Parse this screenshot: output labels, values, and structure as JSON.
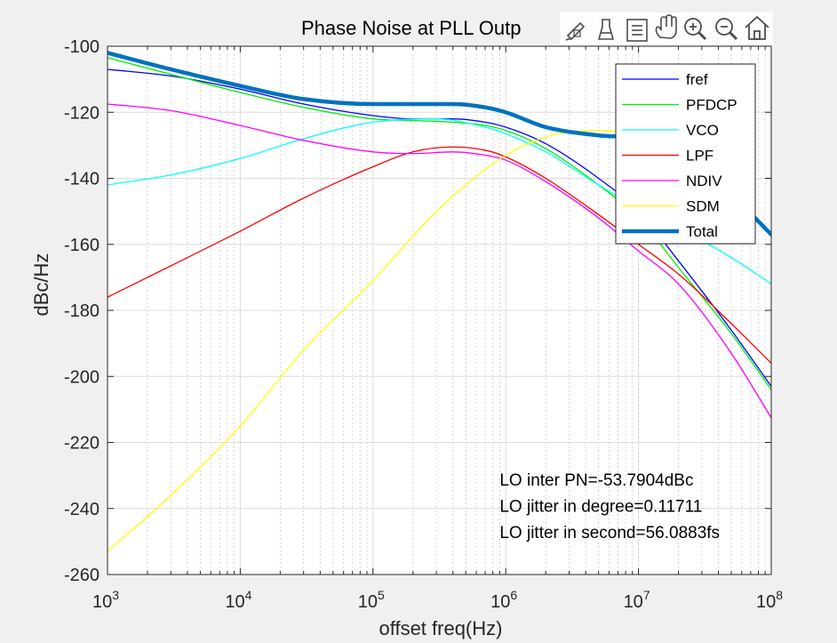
{
  "toolbar": {
    "icons": [
      "brush-icon",
      "clear-icon",
      "legend-icon",
      "pan-icon",
      "zoom-in-icon",
      "zoom-out-icon",
      "home-icon"
    ]
  },
  "chart_data": {
    "type": "line",
    "title": "Phase Noise at PLL Outp",
    "xlabel": "offset  freq(Hz)",
    "ylabel": "dBc/Hz",
    "xscale": "log",
    "xlim": [
      1000,
      100000000
    ],
    "ylim": [
      -260,
      -100
    ],
    "xtick_labels": [
      {
        "value": 1000,
        "base": "10",
        "exp": "3"
      },
      {
        "value": 10000,
        "base": "10",
        "exp": "4"
      },
      {
        "value": 100000,
        "base": "10",
        "exp": "5"
      },
      {
        "value": 1000000,
        "base": "10",
        "exp": "6"
      },
      {
        "value": 10000000,
        "base": "10",
        "exp": "7"
      },
      {
        "value": 100000000,
        "base": "10",
        "exp": "8"
      }
    ],
    "yticks": [
      -100,
      -120,
      -140,
      -160,
      -180,
      -200,
      -220,
      -240,
      -260
    ],
    "grid": true,
    "minor_grid": true,
    "legend_position": "top-right",
    "series": [
      {
        "name": "fref",
        "color": "#0000ff",
        "width": 1.3,
        "x": [
          1000,
          3000,
          10000,
          30000,
          100000,
          200000,
          400000,
          700000,
          1000000,
          2000000,
          5000000,
          10000000,
          20000000,
          50000000,
          100000000
        ],
        "y": [
          -107,
          -109,
          -113,
          -117.5,
          -121,
          -122,
          -122,
          -123,
          -124.5,
          -129.5,
          -140,
          -150,
          -165,
          -186,
          -203
        ]
      },
      {
        "name": "PFDCP",
        "color": "#00ee00",
        "width": 1.3,
        "x": [
          1000,
          3000,
          10000,
          30000,
          100000,
          200000,
          400000,
          700000,
          1000000,
          2000000,
          5000000,
          10000000,
          20000000,
          50000000,
          100000000
        ],
        "y": [
          -103.5,
          -108.5,
          -114,
          -118.5,
          -122,
          -122.5,
          -123,
          -124,
          -125.5,
          -131,
          -142,
          -152,
          -167,
          -187,
          -204
        ]
      },
      {
        "name": "VCO",
        "color": "#00ffff",
        "width": 1.3,
        "x": [
          1000,
          3000,
          10000,
          30000,
          100000,
          300000,
          700000,
          1000000,
          2000000,
          5000000,
          10000000,
          20000000,
          50000000,
          100000000
        ],
        "y": [
          -142,
          -139,
          -134,
          -128,
          -123,
          -122,
          -124.5,
          -126.5,
          -132,
          -142,
          -149,
          -155,
          -164,
          -172
        ]
      },
      {
        "name": "LPF",
        "color": "#ff0000",
        "width": 1.3,
        "x": [
          1000,
          3000,
          10000,
          30000,
          100000,
          200000,
          400000,
          700000,
          1000000,
          2000000,
          5000000,
          10000000,
          20000000,
          50000000,
          100000000
        ],
        "y": [
          -176,
          -166.5,
          -156,
          -146,
          -136.5,
          -132,
          -130.5,
          -131.5,
          -133.5,
          -140,
          -151,
          -160,
          -169,
          -184,
          -196
        ]
      },
      {
        "name": "NDIV",
        "color": "#ff00ff",
        "width": 1.3,
        "x": [
          1000,
          3000,
          10000,
          30000,
          100000,
          200000,
          400000,
          700000,
          1000000,
          2000000,
          5000000,
          10000000,
          20000000,
          50000000,
          100000000
        ],
        "y": [
          -117.5,
          -119.5,
          -124,
          -128.5,
          -132,
          -132.5,
          -132,
          -133,
          -134.5,
          -141,
          -152,
          -162,
          -172,
          -193,
          -212.5
        ]
      },
      {
        "name": "SDM",
        "color": "#ffff00",
        "width": 1.3,
        "x": [
          1000,
          3000,
          10000,
          30000,
          100000,
          300000,
          1000000,
          2000000,
          3000000,
          5000000,
          10000000,
          20000000
        ],
        "y": [
          -253,
          -236,
          -215,
          -192,
          -171,
          -150,
          -133,
          -127.5,
          -126,
          -125.5,
          -126.5,
          -128
        ]
      },
      {
        "name": "Total",
        "color": "#0072bd",
        "width": 4.5,
        "x": [
          1000,
          3000,
          10000,
          30000,
          100000,
          200000,
          400000,
          700000,
          1000000,
          2000000,
          5000000,
          10000000,
          20000000,
          50000000,
          100000000
        ],
        "y": [
          -102,
          -107,
          -112,
          -116,
          -117.5,
          -117.5,
          -117.5,
          -118.5,
          -120,
          -124.5,
          -127,
          -128,
          -133,
          -145,
          -157
        ]
      }
    ],
    "annotations": [
      {
        "x": 900000,
        "y": -233,
        "text": "LO inter PN=-53.7904dBc"
      },
      {
        "x": 900000,
        "y": -241,
        "text": "LO jitter in degree=0.11711"
      },
      {
        "x": 900000,
        "y": -249,
        "text": "LO jitter in second=56.0883fs"
      }
    ]
  }
}
